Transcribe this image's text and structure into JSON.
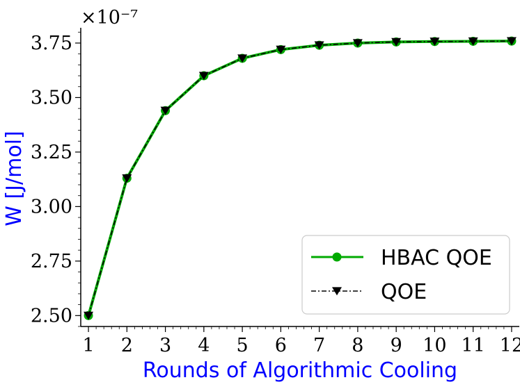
{
  "chart_data": {
    "type": "line",
    "xlabel": "Rounds of Algorithmic Cooling",
    "ylabel": "W [J/mol]",
    "label_color": "#0000ff",
    "y_exponent": "×10⁻⁷",
    "x": [
      1,
      2,
      3,
      4,
      5,
      6,
      7,
      8,
      9,
      10,
      11,
      12
    ],
    "xlim": [
      0.8,
      12.2
    ],
    "ylim": [
      2.45,
      3.82
    ],
    "x_ticks": [
      "1",
      "2",
      "3",
      "4",
      "5",
      "6",
      "7",
      "8",
      "9",
      "10",
      "11",
      "12"
    ],
    "y_ticks": [
      {
        "value": 2.5,
        "label": "2.50"
      },
      {
        "value": 2.75,
        "label": "2.75"
      },
      {
        "value": 3.0,
        "label": "3.00"
      },
      {
        "value": 3.25,
        "label": "3.25"
      },
      {
        "value": 3.5,
        "label": "3.50"
      },
      {
        "value": 3.75,
        "label": "3.75"
      }
    ],
    "grid": false,
    "legend_position": "bottom-right",
    "series": [
      {
        "name": "HBAC QOE",
        "color": "#00aa00",
        "marker": "circle",
        "line_style": "solid",
        "values": [
          2.5,
          3.13,
          3.44,
          3.6,
          3.68,
          3.72,
          3.74,
          3.75,
          3.755,
          3.757,
          3.758,
          3.759
        ]
      },
      {
        "name": "QOE",
        "color": "#000000",
        "marker": "triangle-down",
        "line_style": "dash-dot",
        "values": [
          2.5,
          3.13,
          3.44,
          3.6,
          3.68,
          3.72,
          3.74,
          3.75,
          3.755,
          3.757,
          3.758,
          3.759
        ]
      }
    ]
  }
}
